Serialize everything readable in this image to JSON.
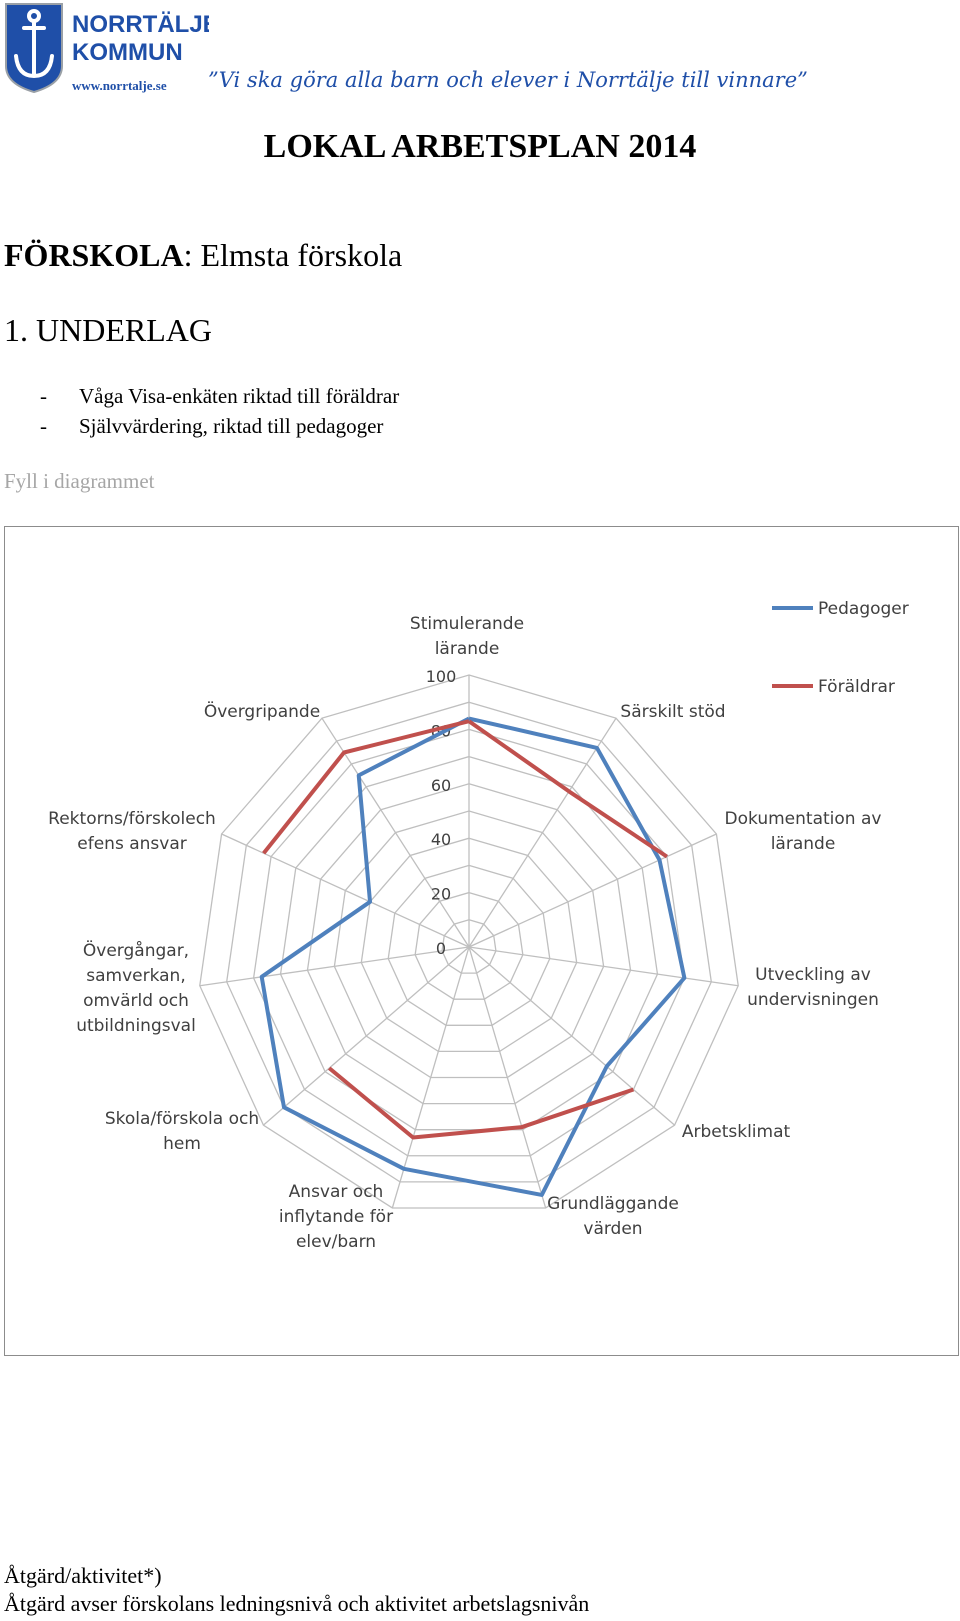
{
  "header": {
    "logo_text_line1": "NORRTÄLJE",
    "logo_text_line2": "KOMMUN",
    "logo_url": "www.norrtalje.se",
    "slogan": "”Vi ska göra alla barn och elever i Norrtälje till vinnare”"
  },
  "document": {
    "title": "LOKAL ARBETSPLAN 2014",
    "school_label": "FÖRSKOLA",
    "school_name": ": Elmsta förskola",
    "section_heading": "1. UNDERLAG",
    "underlag_items": [
      "Våga Visa-enkäten riktad till föräldrar",
      "Självvärdering, riktad till pedagoger"
    ],
    "fill_hint": "Fyll i diagrammet"
  },
  "chart_data": {
    "type": "radar",
    "categories": [
      "Stimulerande lärande",
      "Särskilt stöd",
      "Dokumentation av lärande",
      "Utveckling av undervisningen",
      "Arbetsklimat",
      "Grundläggande värden",
      "Ansvar och inflytande för elev/barn",
      "Skola/förskola och hem",
      "Övergångar, samverkan, omvärld och utbildningsval",
      "Rektorns/förskolechefens ansvar",
      "Övergripande"
    ],
    "axis_labels_display": [
      [
        "Stimulerande",
        "lärande"
      ],
      [
        "Särskilt stöd"
      ],
      [
        "Dokumentation av",
        "lärande"
      ],
      [
        "Utveckling av",
        "undervisningen"
      ],
      [
        "Arbetsklimat"
      ],
      [
        "Grundläggande",
        "värden"
      ],
      [
        "Ansvar och",
        "inflytande för",
        "elev/barn"
      ],
      [
        "Skola/förskola och",
        "hem"
      ],
      [
        "Övergångar,",
        "samverkan,",
        "omvärld och",
        "utbildningsval"
      ],
      [
        "Rektorns/förskolech",
        "efens ansvar"
      ],
      [
        "Övergripande"
      ]
    ],
    "series": [
      {
        "name": "Pedagoger",
        "color": "#4f81bd",
        "values": [
          84,
          87,
          77,
          80,
          67,
          95,
          85,
          90,
          77,
          40,
          75
        ]
      },
      {
        "name": "Föräldrar",
        "color": "#c0504d",
        "values": [
          83,
          68,
          80,
          null,
          80,
          69,
          73,
          68,
          null,
          83,
          85
        ]
      }
    ],
    "radial_ticks": [
      "0",
      "20",
      "40",
      "60",
      "80",
      "100"
    ],
    "rlim": [
      0,
      100
    ],
    "grid": true,
    "legend_position": "top-right"
  },
  "footer": {
    "line1": "Åtgärd/aktivitet*)",
    "line2": "Åtgärd avser förskolans ledningsnivå och aktivitet arbetslagsnivån"
  }
}
